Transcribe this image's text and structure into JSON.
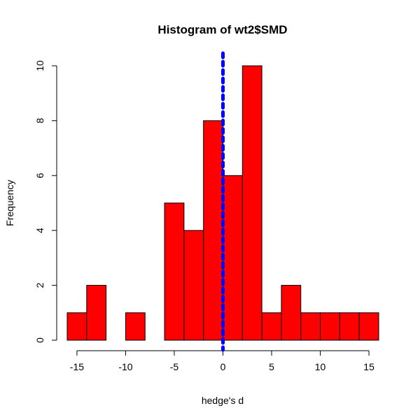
{
  "chart_data": {
    "type": "bar",
    "title": "Histogram of wt2$SMD",
    "xlabel": "hedge's d",
    "ylabel": "Frequency",
    "bins": [
      {
        "from": -16,
        "to": -14,
        "count": 1
      },
      {
        "from": -14,
        "to": -12,
        "count": 2
      },
      {
        "from": -12,
        "to": -10,
        "count": 0
      },
      {
        "from": -10,
        "to": -8,
        "count": 1
      },
      {
        "from": -8,
        "to": -6,
        "count": 0
      },
      {
        "from": -6,
        "to": -4,
        "count": 5
      },
      {
        "from": -4,
        "to": -2,
        "count": 4
      },
      {
        "from": -2,
        "to": 0,
        "count": 8
      },
      {
        "from": 0,
        "to": 2,
        "count": 6
      },
      {
        "from": 2,
        "to": 4,
        "count": 10
      },
      {
        "from": 4,
        "to": 6,
        "count": 1
      },
      {
        "from": 6,
        "to": 8,
        "count": 2
      },
      {
        "from": 8,
        "to": 10,
        "count": 1
      },
      {
        "from": 10,
        "to": 12,
        "count": 1
      },
      {
        "from": 12,
        "to": 14,
        "count": 1
      },
      {
        "from": 14,
        "to": 16,
        "count": 1
      }
    ],
    "xlim": [
      -16,
      16
    ],
    "ylim": [
      0,
      10
    ],
    "xticks": [
      {
        "value": -15,
        "label": "-15"
      },
      {
        "value": -10,
        "label": "-10"
      },
      {
        "value": -5,
        "label": "-5"
      },
      {
        "value": 0,
        "label": "0"
      },
      {
        "value": 5,
        "label": "5"
      },
      {
        "value": 10,
        "label": "10"
      },
      {
        "value": 15,
        "label": "15"
      }
    ],
    "yticks": [
      {
        "value": 0,
        "label": "0"
      },
      {
        "value": 2,
        "label": "2"
      },
      {
        "value": 4,
        "label": "4"
      },
      {
        "value": 6,
        "label": "6"
      },
      {
        "value": 8,
        "label": "8"
      },
      {
        "value": 10,
        "label": "10"
      }
    ],
    "reference_line": {
      "x": 0,
      "style": "dashed",
      "color": "#0000ff"
    },
    "bar_color": "#ff0000",
    "bar_border_color": "#000000"
  }
}
